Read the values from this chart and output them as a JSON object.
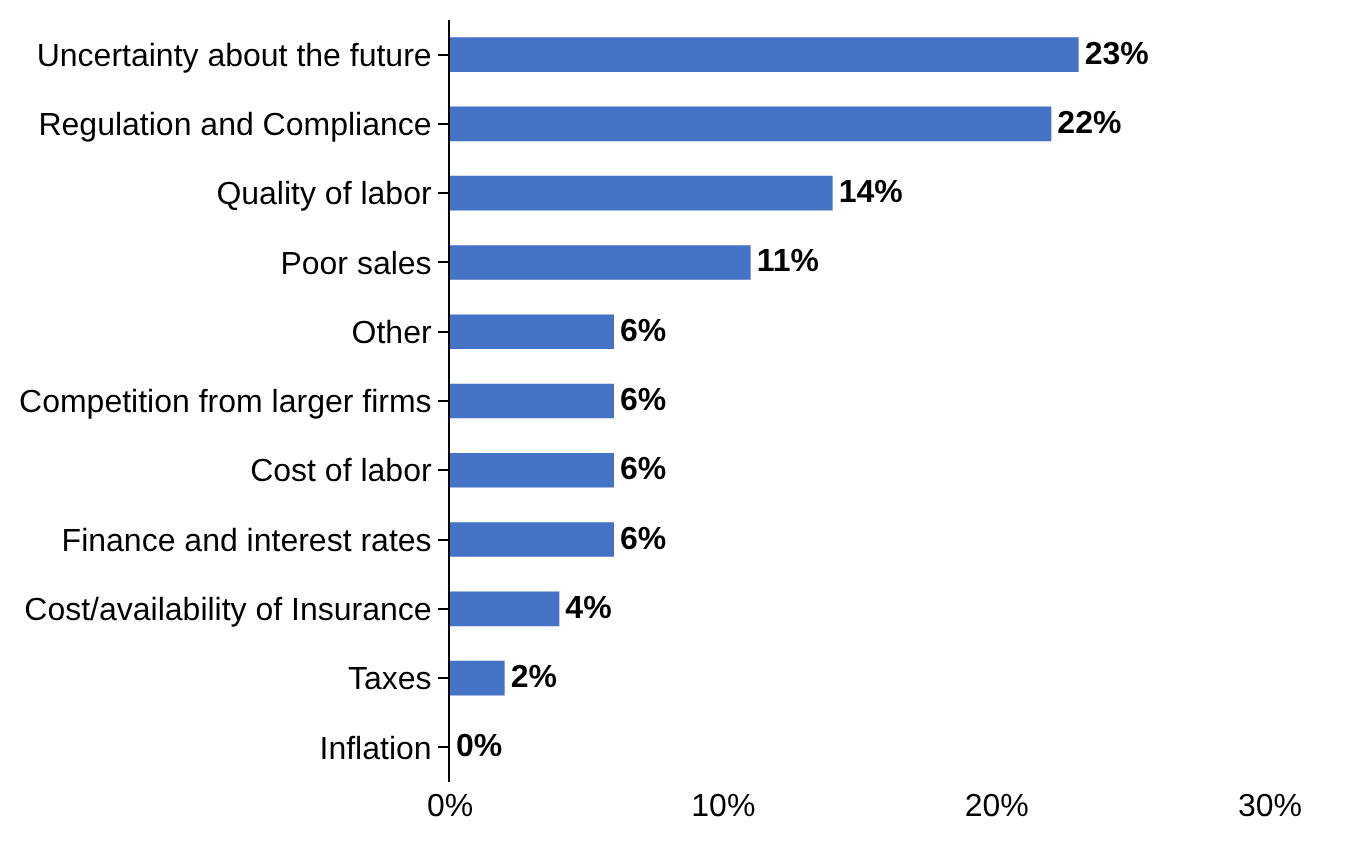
{
  "chart_data": {
    "type": "bar",
    "orientation": "horizontal",
    "categories": [
      "Uncertainty about the future",
      "Regulation and Compliance",
      "Quality of labor",
      "Poor sales",
      "Other",
      "Competition from larger firms",
      "Cost of labor",
      "Finance and interest rates",
      "Cost/availability of Insurance",
      "Taxes",
      "Inflation"
    ],
    "values": [
      23,
      22,
      14,
      11,
      6,
      6,
      6,
      6,
      4,
      2,
      0
    ],
    "value_labels": [
      "23%",
      "22%",
      "14%",
      "11%",
      "6%",
      "6%",
      "6%",
      "6%",
      "4%",
      "2%",
      "0%"
    ],
    "color": "#4472c4",
    "xlim": [
      0,
      30
    ],
    "xticks": [
      {
        "value": 0,
        "label": "0%"
      },
      {
        "value": 10,
        "label": "10%"
      },
      {
        "value": 20,
        "label": "20%"
      },
      {
        "value": 30,
        "label": "30%"
      }
    ],
    "legend": false
  }
}
